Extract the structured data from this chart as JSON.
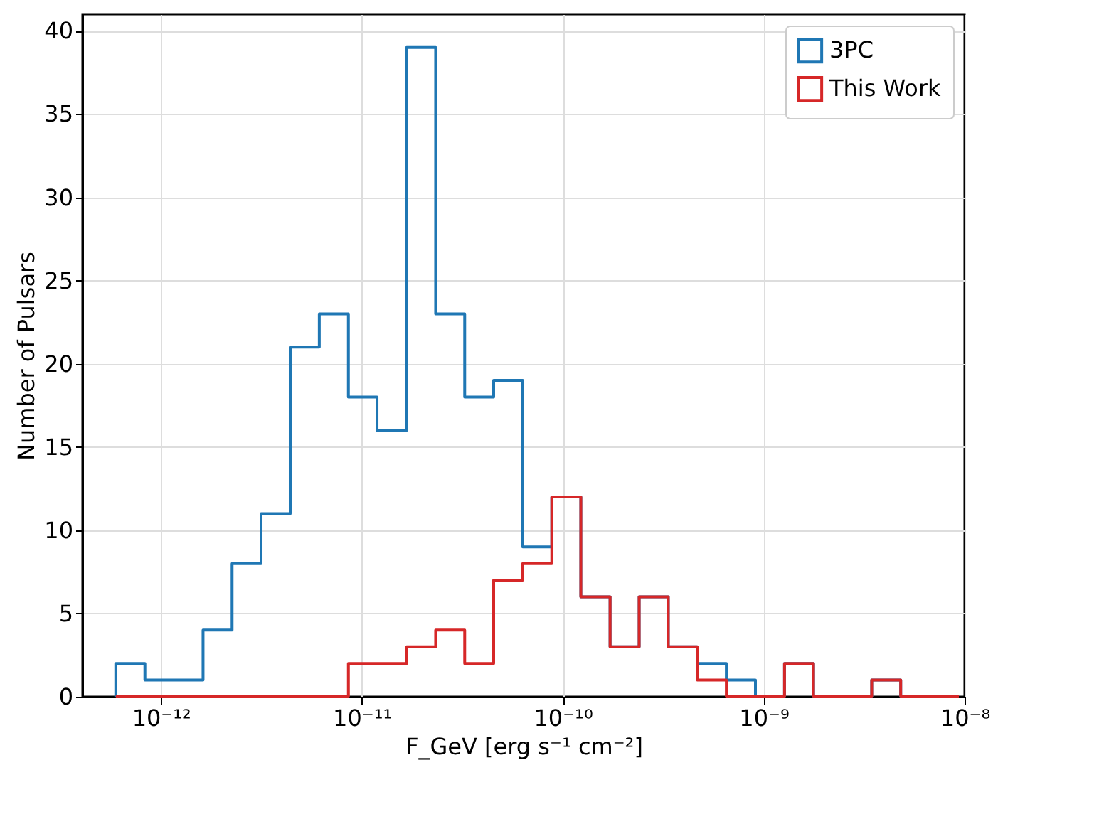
{
  "chart_data": {
    "type": "histogram",
    "xlabel": "F_GeV [erg s⁻¹ cm⁻²]",
    "ylabel": "Number of Pulsars",
    "bins": [
      5.96e-13,
      8.32e-13,
      1.16e-12,
      1.62e-12,
      2.26e-12,
      3.15e-12,
      4.4e-12,
      6.14e-12,
      8.57e-12,
      1.19e-11,
      1.67e-11,
      2.33e-11,
      3.25e-11,
      4.53e-11,
      6.32e-11,
      8.82e-11,
      1.23e-10,
      1.72e-10,
      2.4e-10,
      3.35e-10,
      4.67e-10,
      6.52e-10,
      9.1e-10,
      1.27e-09,
      1.77e-09,
      2.47e-09,
      3.45e-09,
      4.81e-09,
      6.71e-09,
      9.37e-09
    ],
    "series": [
      {
        "name": "3PC",
        "color": "#1f77b4",
        "values": [
          2,
          1,
          1,
          4,
          8,
          11,
          21,
          23,
          18,
          16,
          39,
          23,
          18,
          19,
          9,
          12,
          6,
          3,
          6,
          3,
          2,
          1,
          0,
          2,
          0,
          0,
          1,
          0,
          0
        ]
      },
      {
        "name": "This Work",
        "color": "#d62728",
        "values": [
          0,
          0,
          0,
          0,
          0,
          0,
          0,
          0,
          2,
          2,
          3,
          4,
          2,
          7,
          8,
          12,
          6,
          3,
          6,
          3,
          1,
          0,
          0,
          2,
          0,
          0,
          1,
          0,
          0
        ]
      }
    ],
    "log": "x",
    "xlim": [
      4.07e-13,
      1e-08
    ],
    "xticks": [
      {
        "value": 1e-12,
        "label": "10⁻¹²"
      },
      {
        "value": 1e-11,
        "label": "10⁻¹¹"
      },
      {
        "value": 1e-10,
        "label": "10⁻¹⁰"
      },
      {
        "value": 1e-09,
        "label": "10⁻⁹"
      },
      {
        "value": 1e-08,
        "label": "10⁻⁸"
      }
    ],
    "ylim": [
      0,
      41
    ],
    "yticks": [
      0,
      5,
      10,
      15,
      20,
      25,
      30,
      35,
      40
    ],
    "grid": true,
    "legend": "top right"
  }
}
